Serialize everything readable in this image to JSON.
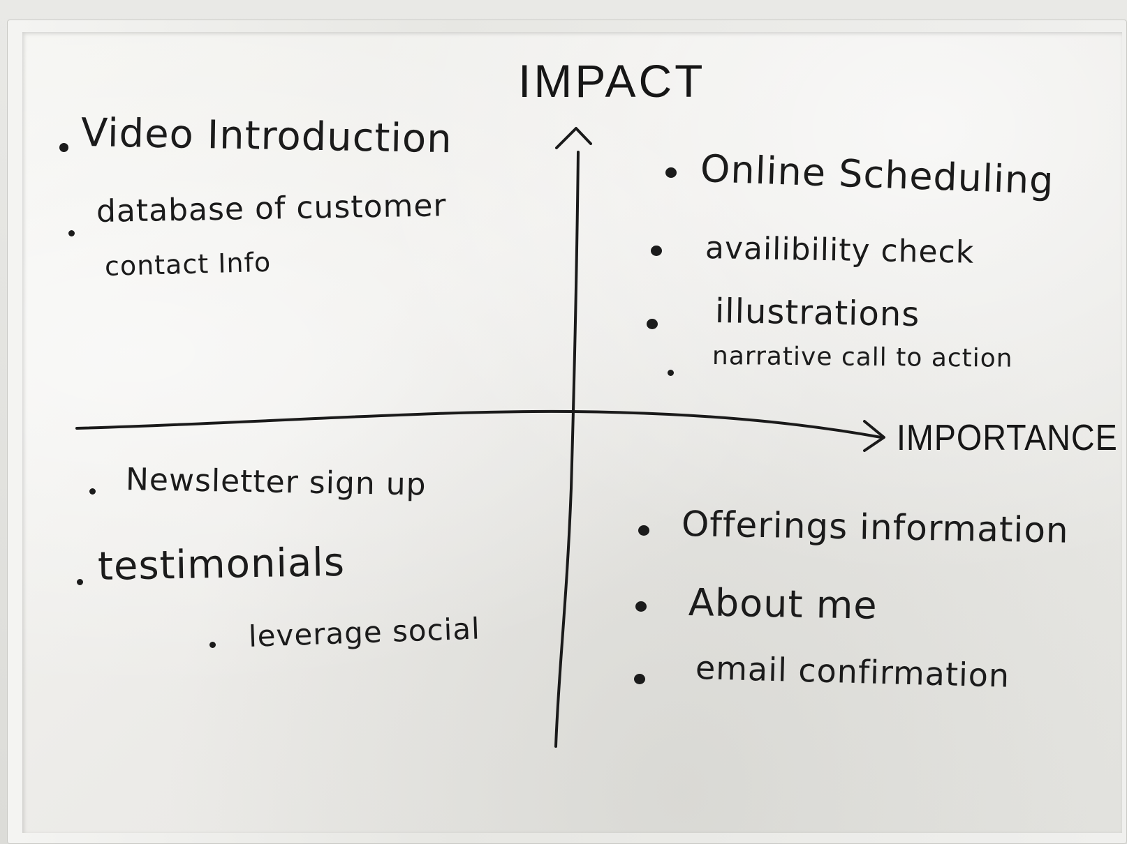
{
  "axes": {
    "vertical_label": "IMPACT",
    "horizontal_label": "IMPORTANCE"
  },
  "quadrants": {
    "top_left": [
      "Video Introduction",
      "database of customer",
      "contact Info"
    ],
    "top_right": [
      "Online Scheduling",
      "availibility check",
      "illustrations",
      "narrative call to action"
    ],
    "bottom_left": [
      "Newsletter sign up",
      "testimonials",
      "leverage social"
    ],
    "bottom_right": [
      "Offerings information",
      "About me",
      "email confirmation"
    ]
  },
  "colors": {
    "marker": "#1b1b1b",
    "board": "#ecebe8",
    "frame": "#e7e7e3"
  }
}
